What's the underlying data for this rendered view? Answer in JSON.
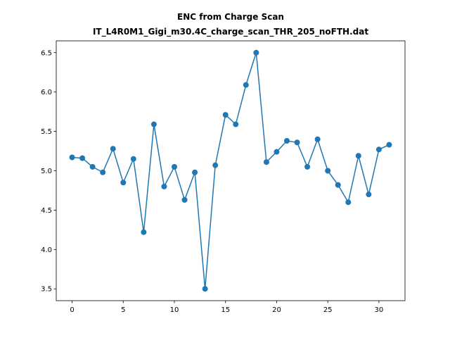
{
  "chart_data": {
    "type": "line",
    "title": "ENC from Charge Scan",
    "subtitle": "IT_L4R0M1_Gigi_m30.4C_charge_scan_THR_205_noFTH.dat",
    "xlabel": "",
    "ylabel": "",
    "xlim": [
      -1.55,
      32.55
    ],
    "ylim": [
      3.35,
      6.65
    ],
    "grid": false,
    "xticks": [
      0,
      5,
      10,
      15,
      20,
      25,
      30
    ],
    "yticks": [
      3.5,
      4.0,
      4.5,
      5.0,
      5.5,
      6.0,
      6.5
    ],
    "xtick_labels": [
      "0",
      "5",
      "10",
      "15",
      "20",
      "25",
      "30"
    ],
    "ytick_labels": [
      "3.5",
      "4.0",
      "4.5",
      "5.0",
      "5.5",
      "6.0",
      "6.5"
    ],
    "series": [
      {
        "color": "#1f77b4",
        "marker": "circle",
        "x": [
          0,
          1,
          2,
          3,
          4,
          5,
          6,
          7,
          8,
          9,
          10,
          11,
          12,
          13,
          14,
          15,
          16,
          17,
          18,
          19,
          20,
          21,
          22,
          23,
          24,
          25,
          26,
          27,
          28,
          29,
          30,
          31
        ],
        "values": [
          5.17,
          5.16,
          5.05,
          4.98,
          5.28,
          4.85,
          5.15,
          4.22,
          5.59,
          4.8,
          5.05,
          4.63,
          4.98,
          3.5,
          5.07,
          5.71,
          5.59,
          6.09,
          6.5,
          5.11,
          5.24,
          5.38,
          5.36,
          5.05,
          5.4,
          5.0,
          4.82,
          4.6,
          5.19,
          4.7,
          5.27,
          5.33
        ]
      }
    ]
  }
}
